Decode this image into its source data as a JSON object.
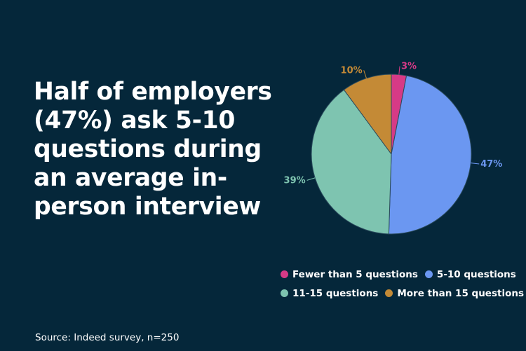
{
  "headline": "Half of employers (47%) ask 5-10 questions during an average in-person interview",
  "source": "Source: Indeed survey, n=250",
  "chart_data": {
    "type": "pie",
    "title": "",
    "slices": [
      {
        "label": "Fewer than 5 questions",
        "value": 3,
        "display": "3%",
        "color": "#d63a86"
      },
      {
        "label": "5-10 questions",
        "value": 47,
        "display": "47%",
        "color": "#6b97f1"
      },
      {
        "label": "11-15 questions",
        "value": 39,
        "display": "39%",
        "color": "#7ec4b0"
      },
      {
        "label": "More than 15 questions",
        "value": 10,
        "display": "10%",
        "color": "#c48a36"
      }
    ],
    "legend_position": "bottom"
  }
}
